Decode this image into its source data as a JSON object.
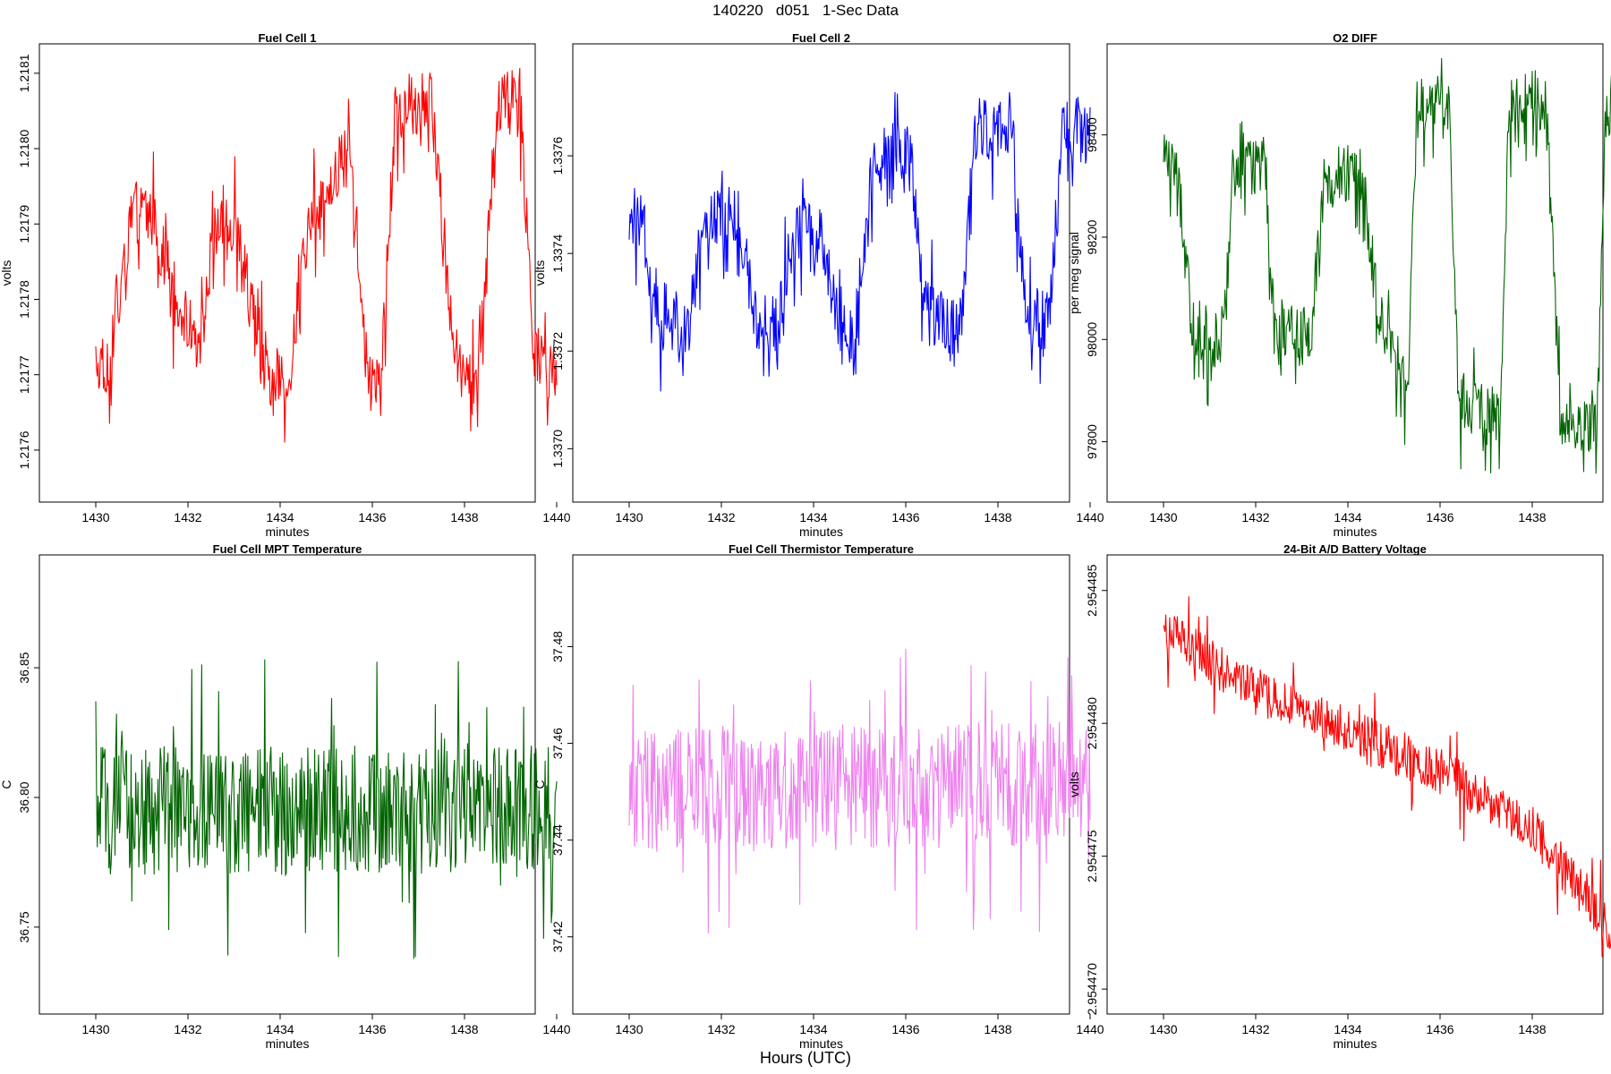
{
  "page": {
    "title": "140220   d051   1-Sec Data",
    "xaxis_title": "Hours (UTC)"
  },
  "chart_data": [
    {
      "type": "line",
      "title": "Fuel Cell 1",
      "xlabel": "minutes",
      "ylabel": "volts",
      "color": "#ff0000",
      "xlim": [
        1430,
        1440
      ],
      "ylim": [
        1.21755,
        1.21812
      ],
      "xticks": [
        "1430",
        "1432",
        "1434",
        "1436",
        "1438",
        "1440"
      ],
      "yticks": [
        "1.2176",
        "1.2177",
        "1.2178",
        "1.2179",
        "1.2180",
        "1.2181"
      ],
      "series": [
        {
          "x": [
            1430.0,
            1430.3,
            1430.5,
            1430.8,
            1431.2,
            1431.5,
            1431.9,
            1432.2,
            1432.6,
            1433.1,
            1433.5,
            1433.8,
            1434.2,
            1434.6,
            1435.0,
            1435.5,
            1435.9,
            1436.2,
            1436.5,
            1436.8,
            1437.3,
            1437.7,
            1437.9,
            1438.3,
            1438.7,
            1439.2,
            1439.5,
            1439.8,
            1440.0
          ],
          "y": [
            1.21772,
            1.21771,
            1.21782,
            1.21792,
            1.21792,
            1.21785,
            1.21778,
            1.21774,
            1.2179,
            1.2179,
            1.21774,
            1.2177,
            1.2177,
            1.2179,
            1.21794,
            1.21802,
            1.21771,
            1.2177,
            1.21805,
            1.21806,
            1.21806,
            1.21778,
            1.21771,
            1.2177,
            1.21806,
            1.21807,
            1.21774,
            1.2177,
            1.2177
          ]
        }
      ]
    },
    {
      "type": "line",
      "title": "Fuel Cell 2",
      "xlabel": "minutes",
      "ylabel": "volts",
      "color": "#0000ff",
      "xlim": [
        1430,
        1440
      ],
      "ylim": [
        1.33692,
        1.3378
      ],
      "xticks": [
        "1430",
        "1432",
        "1434",
        "1436",
        "1438",
        "1440"
      ],
      "yticks": [
        "1.3370",
        "1.3372",
        "1.3374",
        "1.3376"
      ],
      "series": [
        {
          "x": [
            1430.0,
            1430.3,
            1430.5,
            1430.9,
            1431.3,
            1431.6,
            1432.0,
            1432.4,
            1432.7,
            1433.2,
            1433.5,
            1433.8,
            1434.2,
            1434.6,
            1434.9,
            1435.3,
            1435.7,
            1436.1,
            1436.4,
            1436.8,
            1437.2,
            1437.5,
            1437.9,
            1438.3,
            1438.6,
            1439.1,
            1439.4,
            1439.7,
            1440.0
          ],
          "y": [
            1.33748,
            1.33747,
            1.33732,
            1.33726,
            1.33726,
            1.33745,
            1.33748,
            1.33747,
            1.33727,
            1.33725,
            1.33742,
            1.33745,
            1.33743,
            1.33724,
            1.33724,
            1.3376,
            1.33761,
            1.33761,
            1.33729,
            1.33726,
            1.33725,
            1.33766,
            1.33766,
            1.33766,
            1.33728,
            1.33726,
            1.33765,
            1.33766,
            1.33765
          ]
        }
      ]
    },
    {
      "type": "line",
      "title": "O2 DIFF",
      "xlabel": "minutes",
      "ylabel": "per meg signal",
      "color": "#006400",
      "xlim": [
        1430,
        1440
      ],
      "ylim": [
        97710,
        98550
      ],
      "xticks": [
        "1430",
        "1432",
        "1434",
        "1436",
        "1438",
        "1440"
      ],
      "yticks": [
        "97800",
        "98000",
        "98200",
        "98400"
      ],
      "series": [
        {
          "x": [
            1430.0,
            1430.3,
            1430.6,
            1431.0,
            1431.3,
            1431.5,
            1431.8,
            1432.2,
            1432.4,
            1432.9,
            1433.2,
            1433.5,
            1433.8,
            1434.3,
            1434.7,
            1435.0,
            1435.3,
            1435.5,
            1435.8,
            1436.2,
            1436.4,
            1436.6,
            1437.0,
            1437.3,
            1437.5,
            1437.8,
            1438.3,
            1438.6,
            1438.8,
            1439.1,
            1439.4,
            1439.6,
            1440.0
          ],
          "y": [
            98350,
            98340,
            98030,
            98000,
            98010,
            98330,
            98350,
            98350,
            98030,
            98000,
            98010,
            98320,
            98330,
            98320,
            98030,
            97980,
            97880,
            98460,
            98470,
            98470,
            97880,
            97880,
            97850,
            97860,
            98460,
            98470,
            98470,
            97860,
            97860,
            97820,
            97820,
            98450,
            98500
          ]
        }
      ]
    },
    {
      "type": "line",
      "title": "Fuel Cell MPT Temperature",
      "xlabel": "minutes",
      "ylabel": "C",
      "color": "#006400",
      "xlim": [
        1430,
        1440
      ],
      "ylim": [
        36.722,
        36.888
      ],
      "xticks": [
        "1430",
        "1432",
        "1434",
        "1436",
        "1438",
        "1440"
      ],
      "yticks": [
        "36.75",
        "36.80",
        "36.85"
      ],
      "series": [
        {
          "x": [
            1430,
            1440
          ],
          "y": [
            36.795,
            36.795
          ],
          "noise": 0.025
        }
      ]
    },
    {
      "type": "line",
      "title": "Fuel Cell Thermistor Temperature",
      "xlabel": "minutes",
      "ylabel": "C",
      "color": "#ee82ee",
      "xlim": [
        1430,
        1440
      ],
      "ylim": [
        37.407,
        37.496
      ],
      "xticks": [
        "1430",
        "1432",
        "1434",
        "1436",
        "1438",
        "1440"
      ],
      "yticks": [
        "37.42",
        "37.44",
        "37.46",
        "37.48"
      ],
      "series": [
        {
          "x": [
            1430,
            1440
          ],
          "y": [
            37.45,
            37.452
          ],
          "noise": 0.013
        }
      ]
    },
    {
      "type": "line",
      "title": "24-Bit A/D Battery Voltage",
      "xlabel": "minutes",
      "ylabel": "volts",
      "color": "#ff0000",
      "xlim": [
        1430,
        1440
      ],
      "ylim": [
        2.9544696,
        2.9544858
      ],
      "xticks": [
        "1430",
        "1432",
        "1434",
        "1436",
        "1438",
        "1440"
      ],
      "yticks": [
        "2.954470",
        "2.954475",
        "2.954480",
        "2.954485"
      ],
      "series": [
        {
          "x": [
            1430,
            1432,
            1434,
            1436,
            1438,
            1440
          ],
          "y": [
            2.9544835,
            2.9544812,
            2.9544797,
            2.9544782,
            2.954476,
            2.9544717
          ],
          "noise": 9e-07
        }
      ]
    }
  ]
}
